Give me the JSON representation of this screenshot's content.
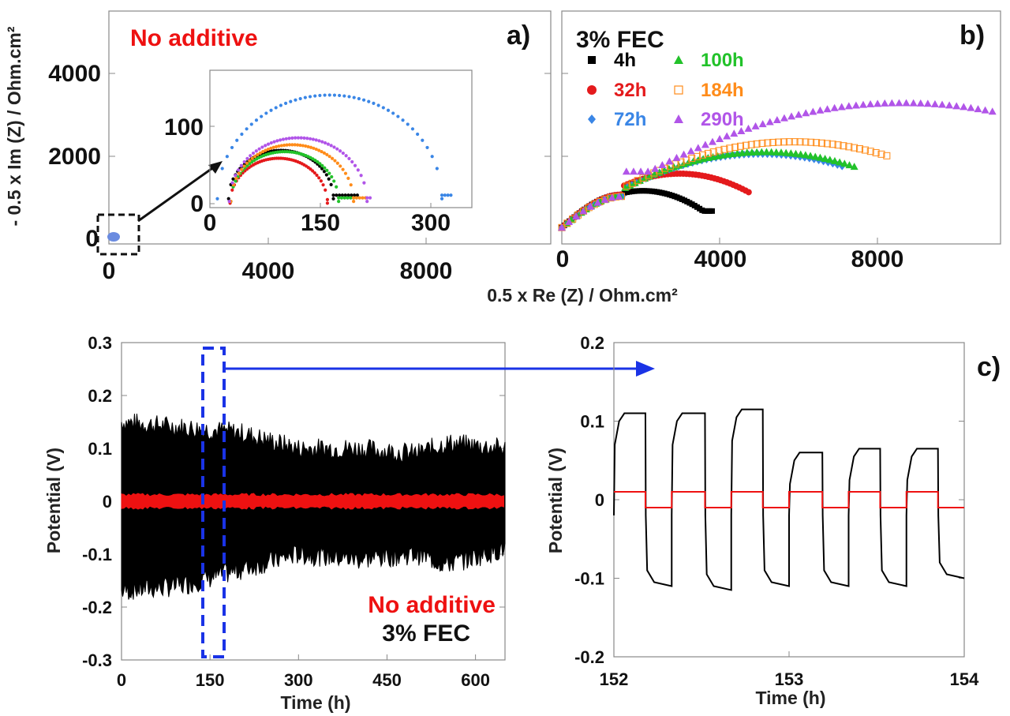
{
  "chart_data": [
    {
      "panel": "a)",
      "type": "scatter",
      "title": "No additive",
      "xlabel": "0.5 x Re (Z) / Ohm.cm²",
      "ylabel": "- 0.5 x Im (Z) / Ohm.cm²",
      "xlim": [
        0,
        10000
      ],
      "ylim": [
        -400,
        5300
      ],
      "x_ticks": [
        "0",
        "4000",
        "8000"
      ],
      "y_ticks": [
        "0",
        "2000",
        "4000"
      ],
      "series_note": "Main panel shows only a small cluster near the origin (boxed, arrow to inset).",
      "inset": {
        "type": "scatter",
        "xlim": [
          0,
          350
        ],
        "ylim": [
          -5,
          150
        ],
        "x_ticks": [
          "0",
          "150",
          "300"
        ],
        "y_ticks": [
          "0",
          "100"
        ],
        "series": [
          {
            "color": "#000000",
            "center": 95,
            "radius": 70,
            "baseline": 5,
            "tail_to": 200
          },
          {
            "color": "#e41a1c",
            "center": 92,
            "radius": 65,
            "baseline": 0,
            "tail_to": 160
          },
          {
            "color": "#3a86e6",
            "center": 160,
            "radius": 150,
            "baseline": 5,
            "tail_to": 325
          },
          {
            "color": "#22c22a",
            "center": 100,
            "radius": 72,
            "baseline": 2,
            "tail_to": 195
          },
          {
            "color": "#ff8c1a",
            "center": 110,
            "radius": 82,
            "baseline": 2,
            "tail_to": 210
          },
          {
            "color": "#b155e8",
            "center": 118,
            "radius": 92,
            "baseline": 2,
            "tail_to": 215
          }
        ]
      }
    },
    {
      "panel": "b)",
      "type": "scatter",
      "title": "3% FEC",
      "xlabel": "0.5 x Re (Z) / Ohm.cm²",
      "xlim": [
        0,
        10800
      ],
      "ylim": [
        -400,
        5300
      ],
      "x_ticks": [
        "0",
        "4000",
        "8000"
      ],
      "legend": [
        {
          "label": "4h",
          "color": "#000000",
          "marker": "square"
        },
        {
          "label": "32h",
          "color": "#e41a1c",
          "marker": "circle"
        },
        {
          "label": "72h",
          "color": "#3a86e6",
          "marker": "diamond"
        },
        {
          "label": "100h",
          "color": "#22c22a",
          "marker": "triangle"
        },
        {
          "label": "184h",
          "color": "#ff8c1a",
          "marker": "open-square"
        },
        {
          "label": "290h",
          "color": "#b155e8",
          "marker": "triangle"
        }
      ],
      "series": [
        {
          "name": "4h",
          "x_end": 3700,
          "y_peak": 900,
          "x_peak": 2000
        },
        {
          "name": "32h",
          "x_end": 4600,
          "y_peak": 1320,
          "x_peak": 2900
        },
        {
          "name": "72h",
          "x_end": 6900,
          "y_peak": 1800,
          "x_peak": 4900
        },
        {
          "name": "100h",
          "x_end": 7200,
          "y_peak": 1850,
          "x_peak": 5000
        },
        {
          "name": "184h",
          "x_end": 8000,
          "y_peak": 2100,
          "x_peak": 5700
        },
        {
          "name": "290h",
          "x_end": 10600,
          "y_peak": 3050,
          "x_peak": 8400
        }
      ]
    },
    {
      "panel": "c)",
      "type": "line",
      "ylabel": "Potential (V)",
      "xlabel": "Time (h)",
      "xlim": [
        0,
        650
      ],
      "ylim": [
        -0.3,
        0.3
      ],
      "x_ticks": [
        "0",
        "150",
        "300",
        "450",
        "600"
      ],
      "y_ticks": [
        "0.3",
        "0.2",
        "0.1",
        "0",
        "-0.1",
        "-0.2",
        "-0.3"
      ],
      "legend": [
        {
          "label": "No additive",
          "color": "#ee1111"
        },
        {
          "label": "3% FEC",
          "color": "#111111"
        }
      ],
      "envelope_black": {
        "x": [
          0,
          100,
          200,
          300,
          400,
          500,
          550,
          650
        ],
        "upper": [
          0.15,
          0.14,
          0.13,
          0.1,
          0.1,
          0.09,
          0.11,
          0.1
        ],
        "lower": [
          -0.17,
          -0.16,
          -0.13,
          -0.1,
          -0.11,
          -0.1,
          -0.12,
          -0.09
        ]
      },
      "envelope_red": {
        "upper": 0.012,
        "lower": -0.012
      },
      "highlight_range": [
        150,
        190
      ]
    },
    {
      "panel": "c) zoom",
      "type": "line",
      "ylabel": "Potential (V)",
      "xlabel": "Time (h)",
      "xlim": [
        152,
        154
      ],
      "ylim": [
        -0.2,
        0.2
      ],
      "x_ticks": [
        "152",
        "153",
        "154"
      ],
      "y_ticks": [
        "0.2",
        "0.1",
        "0",
        "-0.1",
        "-0.2"
      ],
      "pulses": [
        {
          "start": 152.0,
          "end": 152.18,
          "high": 0.11,
          "low_next": -0.11
        },
        {
          "start": 152.33,
          "end": 152.52,
          "high": 0.11,
          "low_next": -0.115
        },
        {
          "start": 152.67,
          "end": 152.85,
          "high": 0.115,
          "low_next": -0.11
        },
        {
          "start": 153.0,
          "end": 153.19,
          "high": 0.06,
          "low_next": -0.11
        },
        {
          "start": 153.34,
          "end": 153.52,
          "high": 0.065,
          "low_next": -0.11
        },
        {
          "start": 153.67,
          "end": 153.85,
          "high": 0.065,
          "low_next": -0.1
        }
      ],
      "red_level": 0.01
    }
  ],
  "figure": {
    "panel_a_title": "No additive",
    "panel_b_title": "3% FEC",
    "tag_a": "a)",
    "tag_b": "b)",
    "tag_c": "c)",
    "shared_xlabel": "0.5 x Re (Z) / Ohm.cm²",
    "ylabel_ab": "- 0.5 x Im (Z) / Ohm.cm²",
    "ylabel_c": "Potential (V)",
    "xlabel_time": "Time (h)",
    "legend_c_no_additive": "No additive",
    "legend_c_fec": "3% FEC"
  }
}
